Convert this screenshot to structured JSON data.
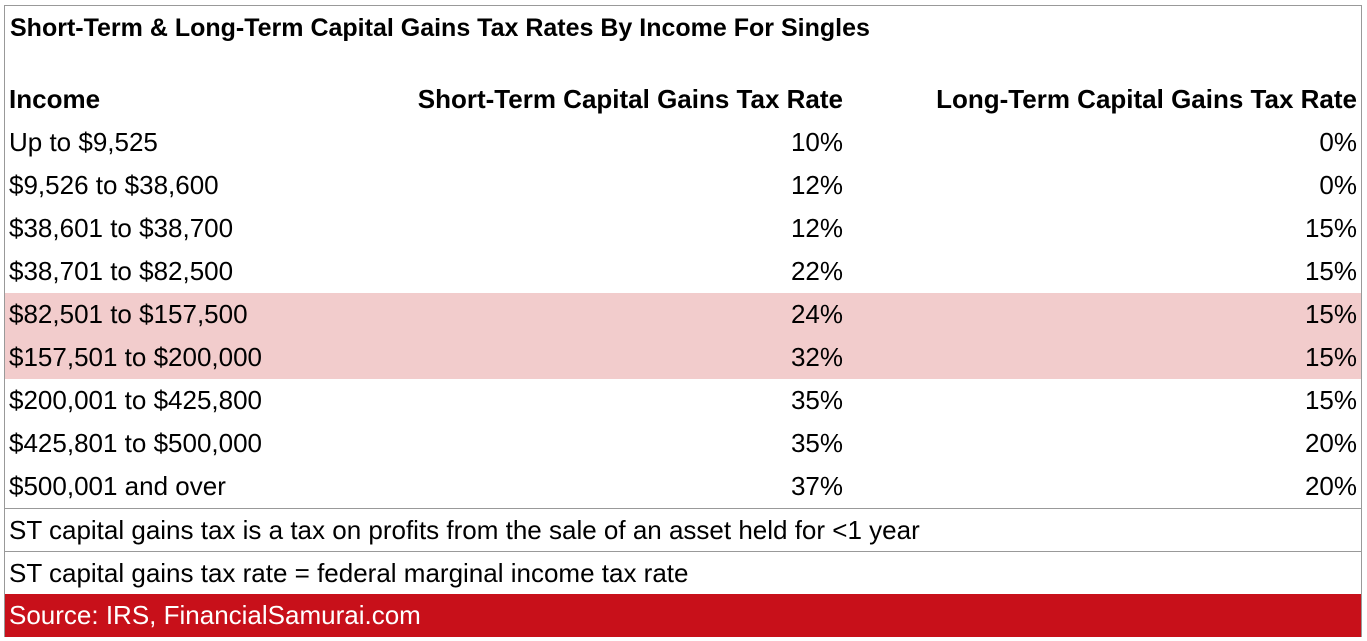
{
  "header": {
    "title": "Short-Term & Long-Term Capital Gains Tax Rates By Income For Singles"
  },
  "table": {
    "columns": [
      "Income",
      "Short-Term Capital Gains Tax Rate",
      "Long-Term Capital Gains Tax Rate"
    ],
    "rows": [
      [
        "Up to $9,525",
        "10%",
        "0%"
      ],
      [
        "$9,526 to $38,600",
        "12%",
        "0%"
      ],
      [
        "$38,601 to $38,700",
        "12%",
        "15%"
      ],
      [
        "$38,701 to $82,500",
        "22%",
        "15%"
      ],
      [
        "$82,501 to $157,500",
        "24%",
        "15%"
      ],
      [
        "$157,501 to $200,000",
        "32%",
        "15%"
      ],
      [
        "$200,001 to $425,800",
        "35%",
        "15%"
      ],
      [
        "$425,801 to $500,000",
        "35%",
        "20%"
      ],
      [
        "$500,001 and over",
        "37%",
        "20%"
      ]
    ]
  },
  "notes": [
    "ST capital gains tax is a tax on profits from the sale of an asset held for <1 year",
    "ST capital gains tax rate = federal marginal income tax rate"
  ],
  "source": "Source: IRS, FinancialSamurai.com"
}
